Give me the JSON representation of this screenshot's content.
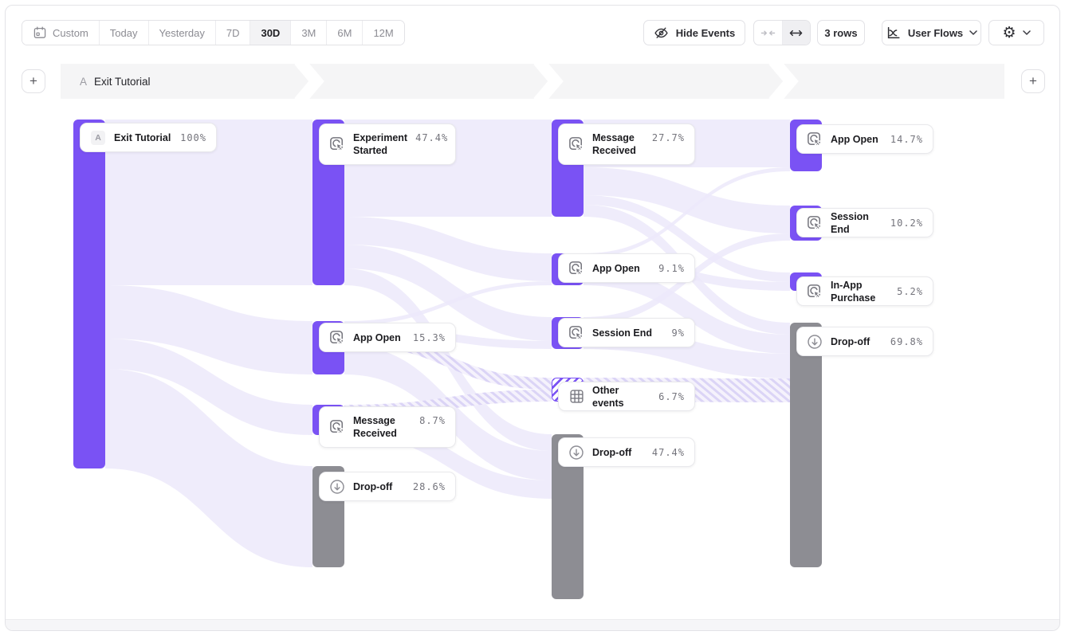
{
  "toolbar": {
    "date_ranges": [
      "Custom",
      "Today",
      "Yesterday",
      "7D",
      "30D",
      "3M",
      "6M",
      "12M"
    ],
    "selected_range": "30D",
    "hide_events_label": "Hide Events",
    "rows_label": "3 rows",
    "view_label": "User Flows"
  },
  "band": {
    "step_prefix": "A",
    "step_label": "Exit Tutorial"
  },
  "flow": {
    "columns": [
      {
        "nodes": [
          {
            "label": "Exit Tutorial",
            "pct": "100%",
            "kind": "source"
          }
        ]
      },
      {
        "nodes": [
          {
            "label": "Experiment Started",
            "pct": "47.4%",
            "kind": "event"
          },
          {
            "label": "App Open",
            "pct": "15.3%",
            "kind": "event"
          },
          {
            "label": "Message Received",
            "pct": "8.7%",
            "kind": "event"
          },
          {
            "label": "Drop-off",
            "pct": "28.6%",
            "kind": "dropoff"
          }
        ]
      },
      {
        "nodes": [
          {
            "label": "Message Received",
            "pct": "27.7%",
            "kind": "event"
          },
          {
            "label": "App Open",
            "pct": "9.1%",
            "kind": "event"
          },
          {
            "label": "Session End",
            "pct": "9%",
            "kind": "event"
          },
          {
            "label": "Other events",
            "pct": "6.7%",
            "kind": "other"
          },
          {
            "label": "Drop-off",
            "pct": "47.4%",
            "kind": "dropoff"
          }
        ]
      },
      {
        "nodes": [
          {
            "label": "App Open",
            "pct": "14.7%",
            "kind": "event"
          },
          {
            "label": "Session End",
            "pct": "10.2%",
            "kind": "event"
          },
          {
            "label": "In-App Purchase",
            "pct": "5.2%",
            "kind": "event"
          },
          {
            "label": "Drop-off",
            "pct": "69.8%",
            "kind": "dropoff"
          }
        ]
      }
    ]
  },
  "colors": {
    "accent": "#7A52F4",
    "dropoff_gray": "#8D8D93",
    "ribbon": "#ECE9FA",
    "band_bg": "#F5F5F6"
  }
}
